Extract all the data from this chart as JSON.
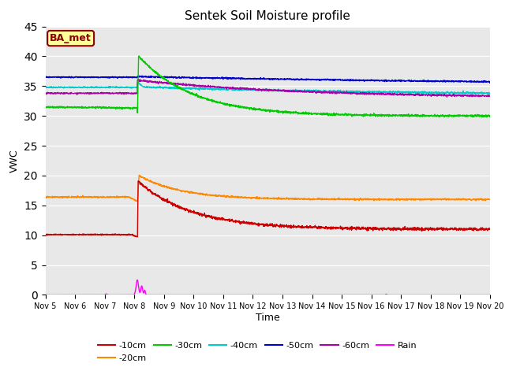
{
  "title": "Sentek Soil Moisture profile",
  "xlabel": "Time",
  "ylabel": "VWC",
  "ylim": [
    0,
    45
  ],
  "yticks": [
    0,
    5,
    10,
    15,
    20,
    25,
    30,
    35,
    40,
    45
  ],
  "background_color": "#e8e8e8",
  "annotation_text": "BA_met",
  "annotation_bg": "#ffff99",
  "annotation_border": "#8b0000",
  "series": {
    "-10cm": {
      "color": "#cc0000",
      "lw": 1.0
    },
    "-20cm": {
      "color": "#ff8800",
      "lw": 1.0
    },
    "-30cm": {
      "color": "#00cc00",
      "lw": 1.0
    },
    "-40cm": {
      "color": "#00cccc",
      "lw": 1.0
    },
    "-50cm": {
      "color": "#0000cc",
      "lw": 1.0
    },
    "-60cm": {
      "color": "#aa00aa",
      "lw": 1.0
    },
    "Rain": {
      "color": "#ff00ff",
      "lw": 1.0
    }
  }
}
